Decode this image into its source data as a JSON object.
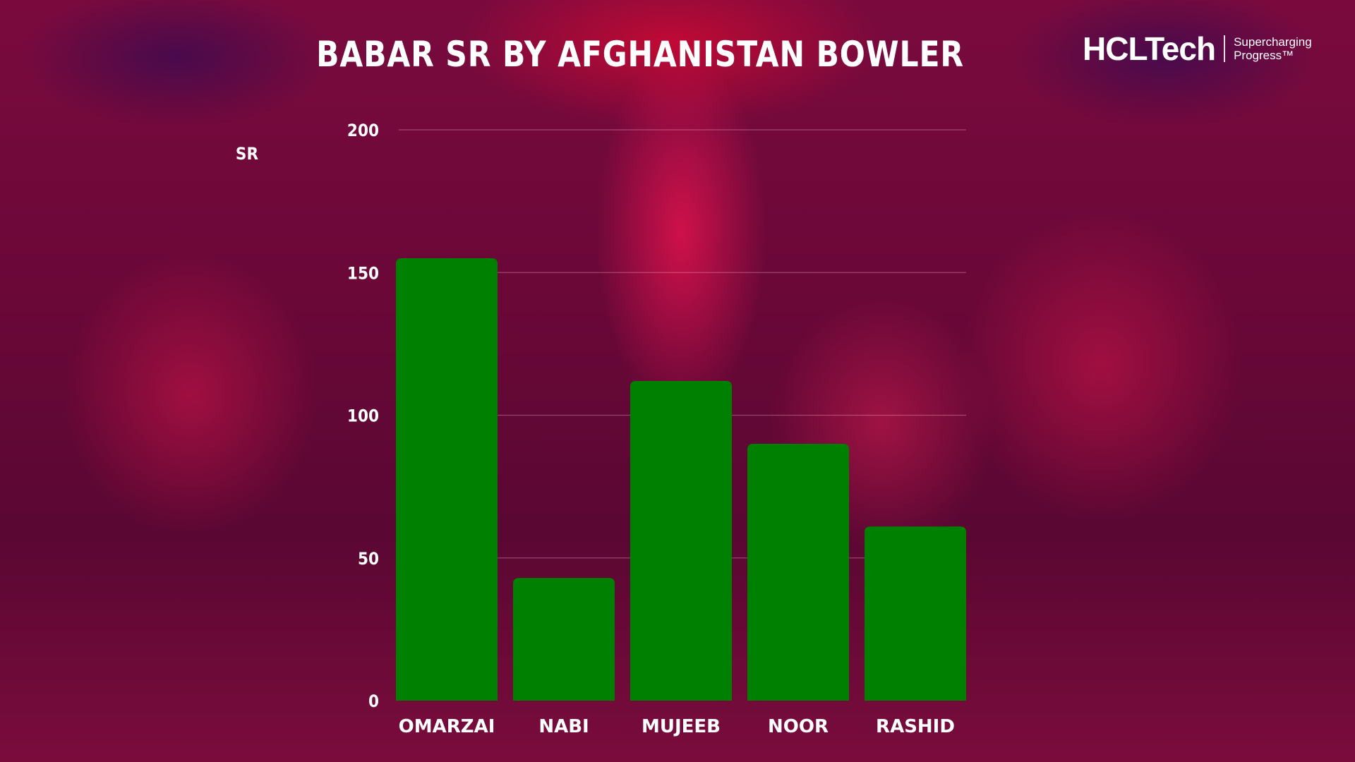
{
  "logo": {
    "brand": "HCLTech",
    "tagline_1": "Supercharging",
    "tagline_2": "Progress™"
  },
  "chart_data": {
    "type": "bar",
    "title": "BABAR SR BY AFGHANISTAN BOWLER",
    "xlabel": "",
    "ylabel": "SR",
    "categories": [
      "OMARZAI",
      "NABI",
      "MUJEEB",
      "NOOR",
      "RASHID"
    ],
    "values": [
      155,
      43,
      112,
      90,
      61
    ],
    "ylim": [
      0,
      200
    ],
    "yticks": [
      0,
      50,
      100,
      150,
      200
    ],
    "grid": true,
    "bar_color": "#008000"
  }
}
